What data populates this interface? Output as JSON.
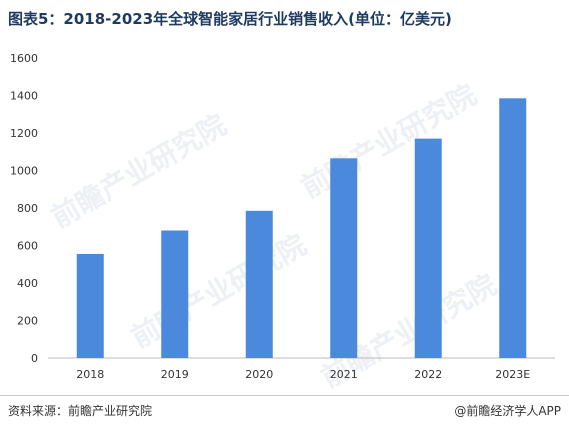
{
  "header": {
    "title": "图表5：2018-2023年全球智能家居行业销售收入(单位：亿美元)"
  },
  "footer": {
    "source": "资料来源：前瞻产业研究院",
    "brand": "@前瞻经济学人APP"
  },
  "watermark": {
    "text": "前瞻产业研究院"
  },
  "colors": {
    "bar": "#4a89dc",
    "axis": "#bbbbbb",
    "tick_text": "#333333"
  },
  "chart_data": {
    "type": "bar",
    "categories": [
      "2018",
      "2019",
      "2020",
      "2021",
      "2022",
      "2023E"
    ],
    "values": [
      555,
      680,
      785,
      1065,
      1170,
      1385
    ],
    "ylim": [
      0,
      1600
    ],
    "yticks": [
      0,
      200,
      400,
      600,
      800,
      1000,
      1200,
      1400,
      1600
    ],
    "grid": false,
    "title": "",
    "xlabel": "",
    "ylabel": ""
  }
}
